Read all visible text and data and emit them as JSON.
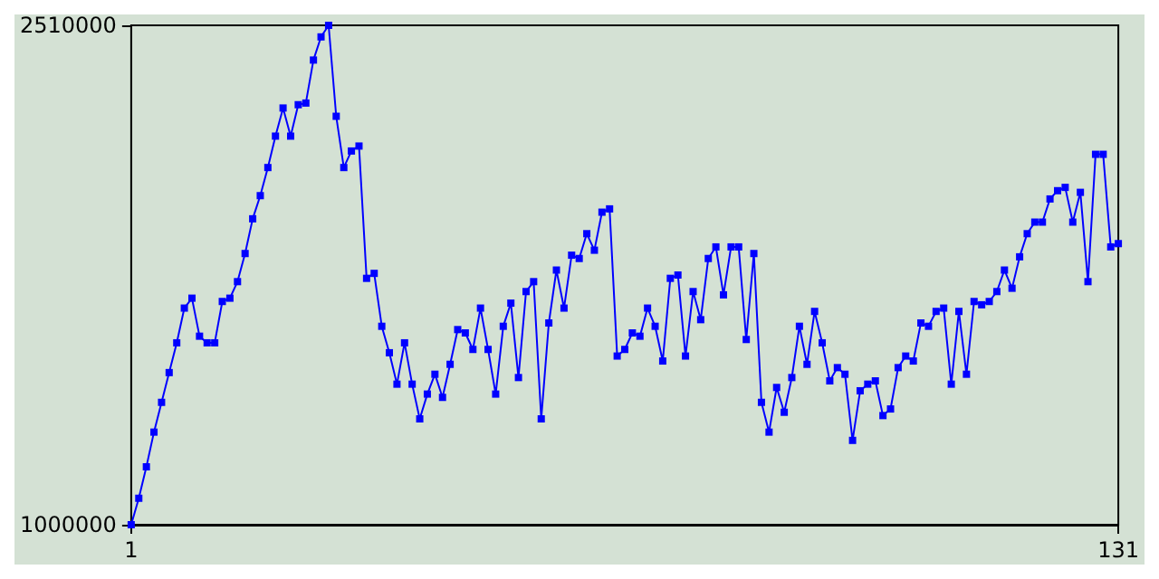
{
  "chart_data": {
    "type": "line",
    "x": [
      1,
      2,
      3,
      4,
      5,
      6,
      7,
      8,
      9,
      10,
      11,
      12,
      13,
      14,
      15,
      16,
      17,
      18,
      19,
      20,
      21,
      22,
      23,
      24,
      25,
      26,
      27,
      28,
      29,
      30,
      31,
      32,
      33,
      34,
      35,
      36,
      37,
      38,
      39,
      40,
      41,
      42,
      43,
      44,
      45,
      46,
      47,
      48,
      49,
      50,
      51,
      52,
      53,
      54,
      55,
      56,
      57,
      58,
      59,
      60,
      61,
      62,
      63,
      64,
      65,
      66,
      67,
      68,
      69,
      70,
      71,
      72,
      73,
      74,
      75,
      76,
      77,
      78,
      79,
      80,
      81,
      82,
      83,
      84,
      85,
      86,
      87,
      88,
      89,
      90,
      91,
      92,
      93,
      94,
      95,
      96,
      97,
      98,
      99,
      100,
      101,
      102,
      103,
      104,
      105,
      106,
      107,
      108,
      109,
      110,
      111,
      112,
      113,
      114,
      115,
      116,
      117,
      118,
      119,
      120,
      121,
      122,
      123,
      124,
      125,
      126,
      127,
      128,
      129,
      130,
      131
    ],
    "series": [
      {
        "color": "#0000ff",
        "values": [
          1000000,
          1080000,
          1175000,
          1280000,
          1370000,
          1460000,
          1550000,
          1655000,
          1685000,
          1570000,
          1550000,
          1550000,
          1675000,
          1685000,
          1735000,
          1820000,
          1925000,
          1995000,
          2080000,
          2175000,
          2260000,
          2175000,
          2270000,
          2275000,
          2405000,
          2475000,
          2510000,
          2235000,
          2080000,
          2130000,
          2145000,
          1745000,
          1760000,
          1600000,
          1520000,
          1425000,
          1550000,
          1425000,
          1320000,
          1395000,
          1455000,
          1385000,
          1485000,
          1590000,
          1580000,
          1530000,
          1655000,
          1530000,
          1395000,
          1600000,
          1670000,
          1445000,
          1705000,
          1735000,
          1320000,
          1610000,
          1770000,
          1655000,
          1815000,
          1805000,
          1880000,
          1830000,
          1945000,
          1955000,
          1510000,
          1530000,
          1580000,
          1570000,
          1655000,
          1600000,
          1495000,
          1745000,
          1755000,
          1510000,
          1705000,
          1620000,
          1805000,
          1840000,
          1695000,
          1840000,
          1840000,
          1560000,
          1820000,
          1370000,
          1280000,
          1415000,
          1340000,
          1445000,
          1600000,
          1485000,
          1645000,
          1550000,
          1435000,
          1475000,
          1455000,
          1255000,
          1405000,
          1425000,
          1435000,
          1330000,
          1350000,
          1475000,
          1510000,
          1495000,
          1610000,
          1600000,
          1645000,
          1655000,
          1425000,
          1645000,
          1455000,
          1675000,
          1665000,
          1675000,
          1705000,
          1770000,
          1715000,
          1810000,
          1880000,
          1915000,
          1915000,
          1985000,
          2010000,
          2020000,
          1915000,
          2005000,
          1735000,
          2120000,
          2120000,
          1840000,
          1850000
        ]
      }
    ],
    "xlim": [
      1,
      131
    ],
    "xticks": [
      1,
      131
    ],
    "ylim": [
      1000000,
      2510000
    ],
    "yticks": [
      1000000,
      2510000
    ],
    "grid": false,
    "marker": "square",
    "line_style": "solid"
  }
}
